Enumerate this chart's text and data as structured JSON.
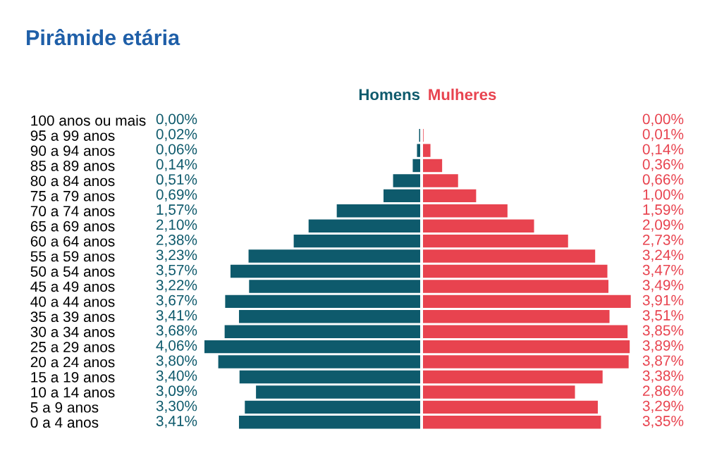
{
  "chart_data": [
    {
      "type": "bar",
      "orientation": "horizontal",
      "title": "Pirâmide etária",
      "categories": [
        "100 anos ou mais",
        "95 a 99 anos",
        "90 a 94 anos",
        "85 a 89 anos",
        "80 a 84 anos",
        "75 a 79 anos",
        "70 a 74 anos",
        "65 a 69 anos",
        "60 a 64 anos",
        "55 a 59 anos",
        "50 a 54 anos",
        "45 a 49 anos",
        "40 a 44 anos",
        "35 a 39 anos",
        "30 a 34 anos",
        "25 a 29 anos",
        "20 a 24 anos",
        "15 a 19 anos",
        "10 a 14 anos",
        "5 a 9 anos",
        "0 a 4 anos"
      ],
      "series": [
        {
          "name": "Homens",
          "color": "#0e5a6c",
          "values": [
            0.0,
            0.02,
            0.06,
            0.14,
            0.51,
            0.69,
            1.57,
            2.1,
            2.38,
            3.23,
            3.57,
            3.22,
            3.67,
            3.41,
            3.68,
            4.06,
            3.8,
            3.4,
            3.09,
            3.3,
            3.41
          ],
          "value_labels": [
            "0,00%",
            "0,02%",
            "0,06%",
            "0,14%",
            "0,51%",
            "0,69%",
            "1,57%",
            "2,10%",
            "2,38%",
            "3,23%",
            "3,57%",
            "3,22%",
            "3,67%",
            "3,41%",
            "3,68%",
            "4,06%",
            "3,80%",
            "3,40%",
            "3,09%",
            "3,30%",
            "3,41%"
          ]
        }
      ],
      "legend": false,
      "grid": false,
      "tick_labels": "y"
    },
    {
      "type": "bar",
      "orientation": "horizontal",
      "categories": [
        null,
        null,
        null,
        null,
        null,
        null,
        null,
        null,
        null,
        null,
        null,
        null,
        null,
        null,
        null,
        null,
        null,
        null,
        null,
        null,
        null
      ],
      "series": [
        {
          "name": "Mulheres",
          "color": "#e8434f",
          "values": [
            0.0,
            0.01,
            0.14,
            0.36,
            0.66,
            1.0,
            1.59,
            2.09,
            2.73,
            3.24,
            3.47,
            3.49,
            3.91,
            3.51,
            3.85,
            3.89,
            3.87,
            3.38,
            2.86,
            3.29,
            3.35
          ],
          "value_labels": [
            "0,00%",
            "0,01%",
            "0,14%",
            "0,36%",
            "0,66%",
            "1,00%",
            "1,59%",
            "2,09%",
            "2,73%",
            "3,24%",
            "3,47%",
            "3,49%",
            "3,91%",
            "3,51%",
            "3,85%",
            "3,89%",
            "3,87%",
            "3,38%",
            "2,86%",
            "3,29%",
            "3,35%"
          ]
        }
      ],
      "legend": false,
      "grid": false,
      "tick_labels": false
    }
  ]
}
